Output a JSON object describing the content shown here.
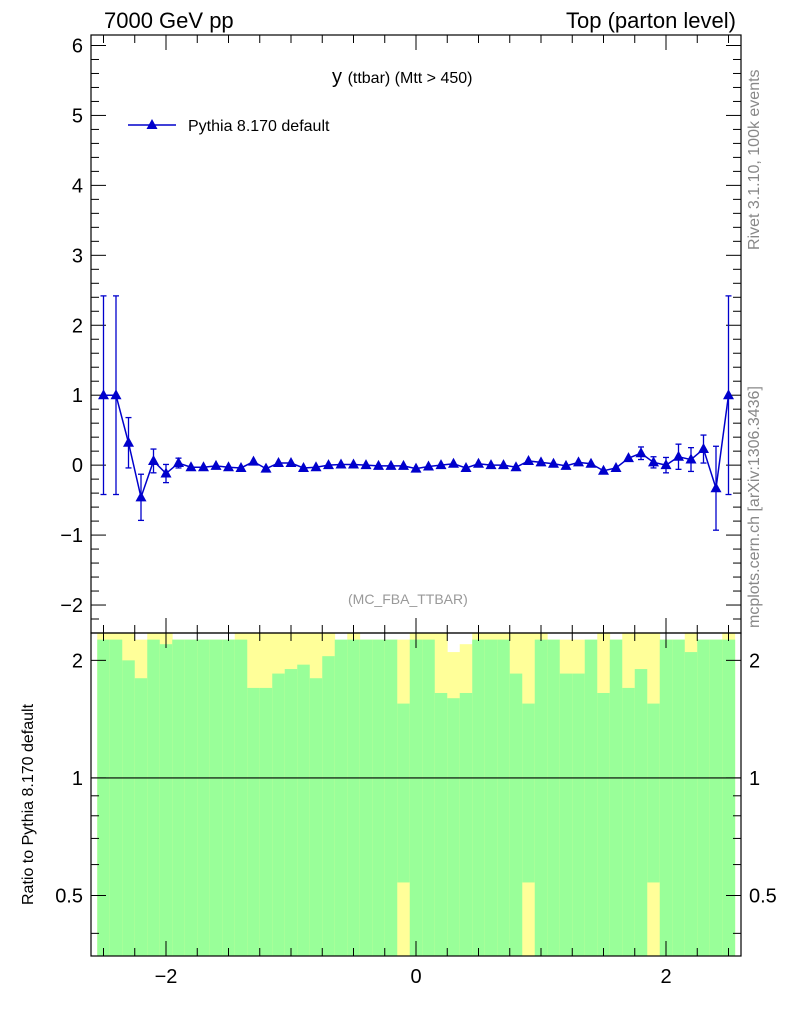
{
  "header": {
    "left": "7000 GeV pp",
    "right": "Top (parton level)"
  },
  "side": {
    "rivet": "Rivet 3.1.10,  100k events",
    "mcplots": "mcplots.cern.ch [arXiv:1306.3436]"
  },
  "colors": {
    "series": "#0000cc",
    "band_green": "#99ff99",
    "band_yellow": "#ffff99"
  },
  "chart_data": [
    {
      "type": "line",
      "title": "y",
      "title_sub": "(ttbar) (Mtt > 450)",
      "annotation": "(MC_FBA_TTBAR)",
      "xlim": [
        -2.6,
        2.6
      ],
      "ylim": [
        -2.4,
        6.15
      ],
      "yticks": [
        -2,
        -1,
        0,
        1,
        2,
        3,
        4,
        5,
        6
      ],
      "ytick_labels": [
        "−2",
        "−1",
        "0",
        "1",
        "2",
        "3",
        "4",
        "5",
        "6"
      ],
      "legend_position": "top-left",
      "series": [
        {
          "name": "Pythia 8.170 default",
          "marker": "triangle",
          "x": [
            -2.5,
            -2.4,
            -2.3,
            -2.2,
            -2.1,
            -2.0,
            -1.9,
            -1.8,
            -1.7,
            -1.6,
            -1.5,
            -1.4,
            -1.3,
            -1.2,
            -1.1,
            -1.0,
            -0.9,
            -0.8,
            -0.7,
            -0.6,
            -0.5,
            -0.4,
            -0.3,
            -0.2,
            -0.1,
            0.0,
            0.1,
            0.2,
            0.3,
            0.4,
            0.5,
            0.6,
            0.7,
            0.8,
            0.9,
            1.0,
            1.1,
            1.2,
            1.3,
            1.4,
            1.5,
            1.6,
            1.7,
            1.8,
            1.9,
            2.0,
            2.1,
            2.2,
            2.3,
            2.4,
            2.5
          ],
          "y": [
            1.0,
            1.0,
            0.32,
            -0.46,
            0.06,
            -0.12,
            0.03,
            -0.03,
            -0.03,
            -0.01,
            -0.03,
            -0.04,
            0.05,
            -0.05,
            0.03,
            0.03,
            -0.04,
            -0.03,
            0.0,
            0.01,
            0.01,
            0.0,
            -0.01,
            -0.01,
            -0.01,
            -0.05,
            -0.02,
            0.0,
            0.02,
            -0.04,
            0.02,
            0.0,
            0.0,
            -0.03,
            0.06,
            0.04,
            0.02,
            -0.01,
            0.04,
            0.02,
            -0.08,
            -0.04,
            0.1,
            0.17,
            0.04,
            0.0,
            0.12,
            0.08,
            0.23,
            -0.33,
            1.0
          ],
          "yerr": [
            1.42,
            1.42,
            0.36,
            0.33,
            0.17,
            0.13,
            0.07,
            0.05,
            0.04,
            0.04,
            0.04,
            0.04,
            0.04,
            0.04,
            0.04,
            0.04,
            0.04,
            0.04,
            0.04,
            0.04,
            0.04,
            0.04,
            0.04,
            0.04,
            0.04,
            0.04,
            0.04,
            0.04,
            0.04,
            0.04,
            0.04,
            0.04,
            0.04,
            0.04,
            0.04,
            0.04,
            0.04,
            0.04,
            0.04,
            0.04,
            0.04,
            0.05,
            0.05,
            0.09,
            0.08,
            0.11,
            0.18,
            0.17,
            0.2,
            0.6,
            1.42
          ]
        }
      ]
    },
    {
      "type": "area",
      "ylabel": "Ratio to Pythia 8.170 default",
      "yscale": "log",
      "ylim": [
        0.35,
        2.35
      ],
      "yticks": [
        0.5,
        1,
        2
      ],
      "ytick_labels": [
        "0.5",
        "1",
        "2"
      ],
      "xticks": [
        -2,
        0,
        2
      ],
      "xtick_labels": [
        "−2",
        "0",
        "2"
      ],
      "reference_line": 1,
      "bands": {
        "x_edges": [
          -2.55,
          -2.45,
          -2.35,
          -2.25,
          -2.15,
          -2.05,
          -1.95,
          -1.85,
          -1.75,
          -1.65,
          -1.55,
          -1.45,
          -1.35,
          -1.25,
          -1.15,
          -1.05,
          -0.95,
          -0.85,
          -0.75,
          -0.65,
          -0.55,
          -0.45,
          -0.35,
          -0.25,
          -0.15,
          -0.05,
          0.05,
          0.15,
          0.25,
          0.35,
          0.45,
          0.55,
          0.65,
          0.75,
          0.85,
          0.95,
          1.05,
          1.15,
          1.25,
          1.35,
          1.45,
          1.55,
          1.65,
          1.75,
          1.85,
          1.95,
          2.05,
          2.15,
          2.25,
          2.35,
          2.45,
          2.55
        ],
        "green_low": [
          0.35,
          0.35,
          0.35,
          0.35,
          0.35,
          0.35,
          0.35,
          0.35,
          0.35,
          0.35,
          0.35,
          0.35,
          0.35,
          0.35,
          0.35,
          0.35,
          0.35,
          0.35,
          0.35,
          0.35,
          0.35,
          0.35,
          0.35,
          0.35,
          0.54,
          0.35,
          0.35,
          0.35,
          0.35,
          0.35,
          0.35,
          0.35,
          0.35,
          0.35,
          0.54,
          0.35,
          0.35,
          0.35,
          0.35,
          0.35,
          0.35,
          0.35,
          0.35,
          0.35,
          0.54,
          0.35,
          0.35,
          0.35,
          0.35,
          0.35,
          0.35
        ],
        "green_high": [
          2.26,
          2.26,
          2.0,
          1.8,
          2.26,
          2.2,
          2.26,
          2.26,
          2.26,
          2.26,
          2.26,
          2.26,
          1.7,
          1.7,
          1.85,
          1.9,
          1.95,
          1.8,
          2.05,
          2.26,
          2.26,
          2.26,
          2.26,
          2.26,
          1.55,
          2.26,
          2.26,
          1.65,
          1.6,
          1.65,
          2.26,
          2.26,
          2.26,
          1.85,
          1.55,
          2.26,
          2.26,
          1.85,
          1.85,
          2.26,
          1.65,
          2.26,
          1.7,
          1.9,
          1.55,
          2.26,
          2.26,
          2.1,
          2.26,
          2.26,
          2.26
        ],
        "yellow_low": [
          0.35,
          0.35,
          0.35,
          0.35,
          0.35,
          0.35,
          0.35,
          0.35,
          0.35,
          0.35,
          0.35,
          0.35,
          0.35,
          0.35,
          0.35,
          0.35,
          0.35,
          0.35,
          0.35,
          0.35,
          0.35,
          0.35,
          0.35,
          0.35,
          0.35,
          0.35,
          0.35,
          0.35,
          0.35,
          0.35,
          0.35,
          0.35,
          0.35,
          0.35,
          0.35,
          0.35,
          0.35,
          0.35,
          0.35,
          0.35,
          0.35,
          0.35,
          0.35,
          0.35,
          0.35,
          0.35,
          0.35,
          0.35,
          0.35,
          0.35,
          0.35
        ],
        "yellow_high": [
          2.35,
          2.35,
          2.35,
          2.26,
          2.35,
          2.35,
          2.26,
          2.26,
          2.26,
          2.26,
          2.26,
          2.35,
          2.35,
          2.35,
          2.35,
          2.35,
          2.35,
          2.35,
          2.35,
          2.1,
          2.35,
          2.26,
          2.26,
          2.26,
          2.26,
          2.35,
          2.35,
          2.35,
          2.1,
          2.2,
          2.35,
          2.35,
          2.35,
          2.35,
          2.35,
          2.35,
          2.26,
          2.26,
          2.26,
          2.26,
          2.35,
          2.26,
          2.35,
          2.35,
          2.35,
          2.26,
          2.26,
          2.35,
          2.26,
          2.26,
          2.35
        ]
      }
    }
  ]
}
